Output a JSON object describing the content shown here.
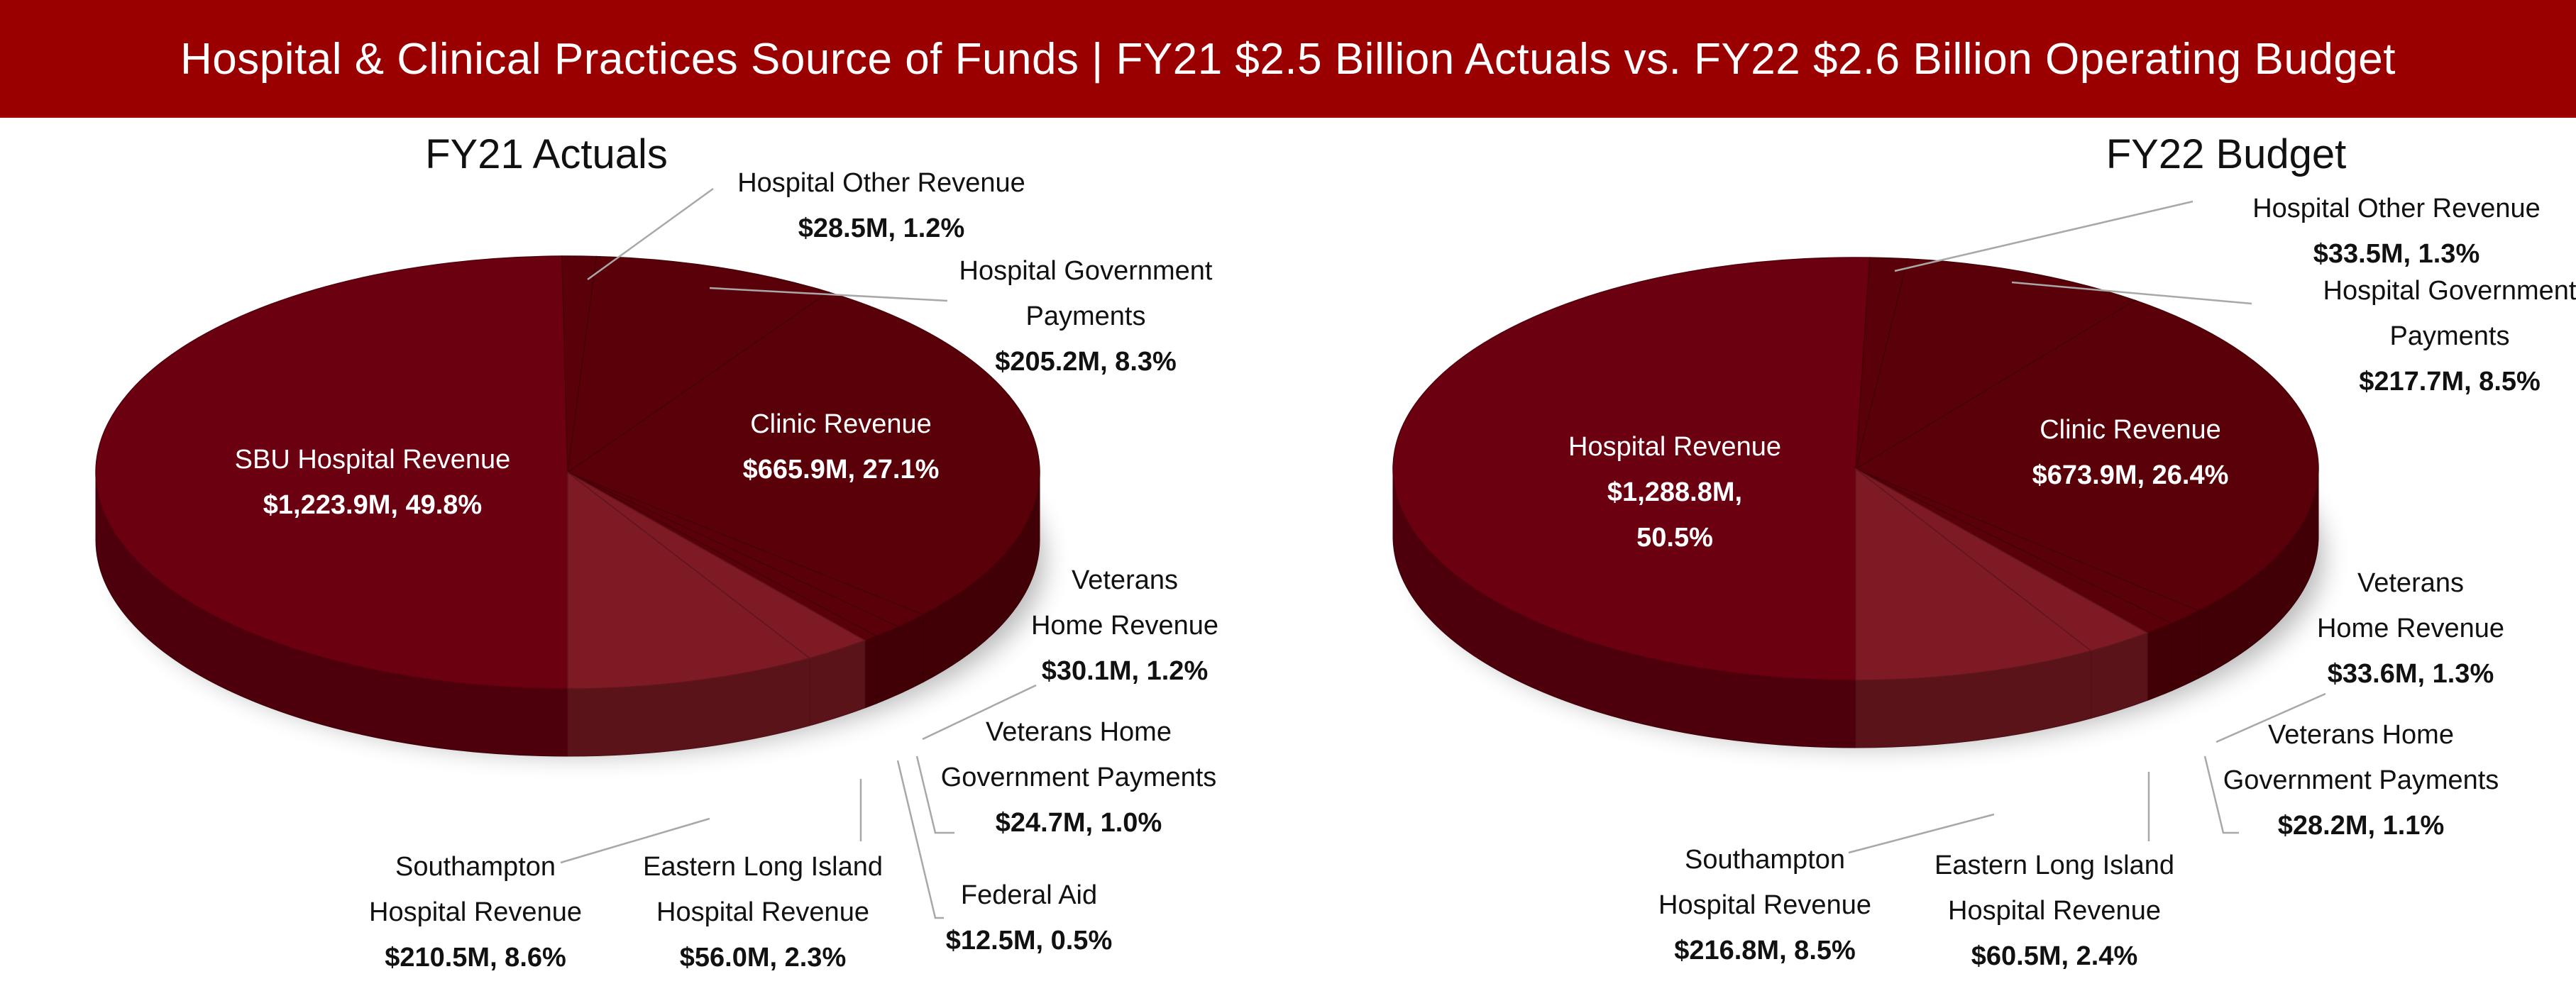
{
  "header": {
    "title": "Hospital & Clinical Practices Source of Funds | FY21 $2.5 Billion Actuals vs. FY22 $2.6 Billion Operating Budget"
  },
  "colors": {
    "banner": "#9b0000",
    "slice_dark": "#5a0009",
    "slice_mid": "#6b0010",
    "slice_light": "#7e1a24"
  },
  "chart_data": [
    {
      "type": "pie",
      "title": "FY21 Actuals",
      "slices": [
        {
          "label_lines": [
            "SBU Hospital Revenue"
          ],
          "value_text": "$1,223.9M, 49.8%",
          "value": 1223.9,
          "percent": 49.8
        },
        {
          "label_lines": [
            "Hospital Other Revenue"
          ],
          "value_text": "$28.5M, 1.2%",
          "value": 28.5,
          "percent": 1.2
        },
        {
          "label_lines": [
            "Hospital Government",
            "Payments"
          ],
          "value_text": "$205.2M, 8.3%",
          "value": 205.2,
          "percent": 8.3
        },
        {
          "label_lines": [
            "Clinic Revenue"
          ],
          "value_text": "$665.9M, 27.1%",
          "value": 665.9,
          "percent": 27.1
        },
        {
          "label_lines": [
            "Veterans",
            "Home Revenue"
          ],
          "value_text": "$30.1M, 1.2%",
          "value": 30.1,
          "percent": 1.2
        },
        {
          "label_lines": [
            "Veterans Home",
            "Government Payments"
          ],
          "value_text": "$24.7M, 1.0%",
          "value": 24.7,
          "percent": 1.0
        },
        {
          "label_lines": [
            "Federal Aid"
          ],
          "value_text": "$12.5M, 0.5%",
          "value": 12.5,
          "percent": 0.5
        },
        {
          "label_lines": [
            "Eastern Long Island",
            "Hospital Revenue"
          ],
          "value_text": "$56.0M, 2.3%",
          "value": 56.0,
          "percent": 2.3
        },
        {
          "label_lines": [
            "Southampton",
            "Hospital Revenue"
          ],
          "value_text": "$210.5M, 8.6%",
          "value": 210.5,
          "percent": 8.6
        }
      ]
    },
    {
      "type": "pie",
      "title": "FY22 Budget",
      "slices": [
        {
          "label_lines": [
            "Hospital Revenue",
            "$1,288.8M,",
            "50.5%"
          ],
          "value_text": "",
          "value": 1288.8,
          "percent": 50.5
        },
        {
          "label_lines": [
            "Hospital Other Revenue"
          ],
          "value_text": "$33.5M, 1.3%",
          "value": 33.5,
          "percent": 1.3
        },
        {
          "label_lines": [
            "Hospital Government",
            "Payments"
          ],
          "value_text": "$217.7M, 8.5%",
          "value": 217.7,
          "percent": 8.5
        },
        {
          "label_lines": [
            "Clinic Revenue"
          ],
          "value_text": "$673.9M, 26.4%",
          "value": 673.9,
          "percent": 26.4
        },
        {
          "label_lines": [
            "Veterans",
            "Home Revenue"
          ],
          "value_text": "$33.6M, 1.3%",
          "value": 33.6,
          "percent": 1.3
        },
        {
          "label_lines": [
            "Veterans Home",
            "Government Payments"
          ],
          "value_text": "$28.2M, 1.1%",
          "value": 28.2,
          "percent": 1.1
        },
        {
          "label_lines": [
            "Eastern Long Island",
            "Hospital Revenue"
          ],
          "value_text": "$60.5M, 2.4%",
          "value": 60.5,
          "percent": 2.4
        },
        {
          "label_lines": [
            "Southampton",
            "Hospital Revenue"
          ],
          "value_text": "$216.8M, 8.5%",
          "value": 216.8,
          "percent": 8.5
        }
      ]
    }
  ]
}
